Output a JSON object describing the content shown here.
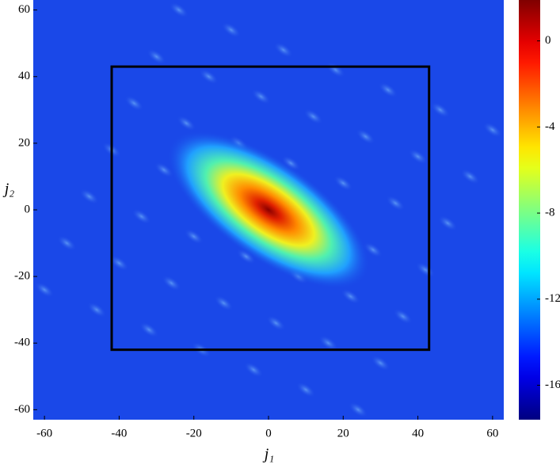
{
  "chart_data": {
    "type": "heatmap",
    "xlabel": "j₁",
    "ylabel": "j₂",
    "xlim": [
      -63,
      63
    ],
    "ylim": [
      -63,
      63
    ],
    "xticks": [
      -60,
      -40,
      -20,
      0,
      20,
      40,
      60
    ],
    "yticks": [
      -60,
      -40,
      -20,
      0,
      20,
      40,
      60
    ],
    "colormap": "jet",
    "clim": [
      -17.6,
      1.9
    ],
    "cticks": [
      0,
      -4,
      -8,
      -12,
      -16
    ],
    "box": {
      "x": [
        -42,
        43
      ],
      "y": [
        -42,
        43
      ],
      "color": "#000000"
    }
  }
}
